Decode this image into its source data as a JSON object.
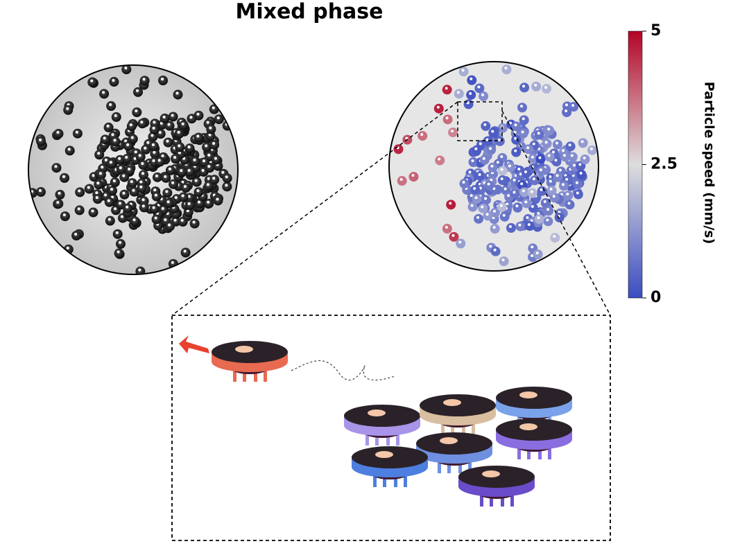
{
  "header": {
    "title": "Mixed phase"
  },
  "colorbar": {
    "label": "Particle speed (mm/s)",
    "lim": [
      0,
      5
    ],
    "ticks": [
      0,
      2.5,
      5
    ],
    "low_color": "#3b4cc0",
    "mid_color": "#dddddd",
    "high_color": "#b40426"
  }
}
